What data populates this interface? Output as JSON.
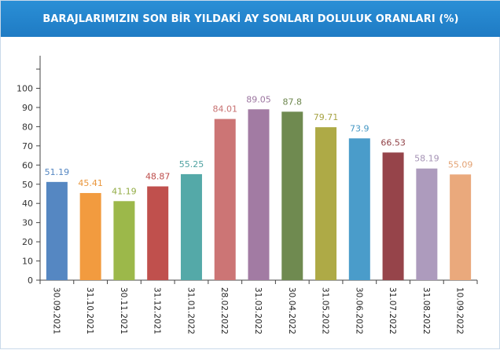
{
  "header": {
    "title": "BARAJLARIMIZIN SON BİR YILDAKİ AY SONLARI DOLULUK ORANLARI (%)"
  },
  "chart_data": {
    "type": "bar",
    "title": "BARAJLARIMIZIN SON BİR YILDAKİ AY SONLARI DOLULUK ORANLARI (%)",
    "xlabel": "",
    "ylabel": "",
    "ylim": [
      0,
      110
    ],
    "yticks": [
      0,
      10,
      20,
      30,
      40,
      50,
      60,
      70,
      80,
      90,
      100
    ],
    "grid": false,
    "legend": "none",
    "categories": [
      "30.09.2021",
      "31.10.2021",
      "30.11.2021",
      "31.12.2021",
      "31.01.2022",
      "28.02.2022",
      "31.03.2022",
      "30.04.2022",
      "31.05.2022",
      "30.06.2022",
      "31.07.2022",
      "31.08.2022",
      "10.09.2022"
    ],
    "values": [
      51.19,
      45.41,
      41.19,
      48.87,
      55.25,
      84.01,
      89.05,
      87.8,
      79.71,
      73.9,
      66.53,
      58.19,
      55.09
    ],
    "value_labels": [
      "51.19",
      "45.41",
      "41.19",
      "48.87",
      "55.25",
      "84.01",
      "89.05",
      "87.8",
      "79.71",
      "73.9",
      "66.53",
      "58.19",
      "55.09"
    ],
    "colors": [
      "#5587c2",
      "#f29b3f",
      "#9cb84a",
      "#c0504d",
      "#54a9a8",
      "#cc7575",
      "#a27ba3",
      "#6f8a50",
      "#aeaa46",
      "#4a9cca",
      "#96444a",
      "#ad9bbd",
      "#eaa97c"
    ],
    "label_colors": [
      "#5587c2",
      "#e9963c",
      "#93ac45",
      "#bd4c4a",
      "#4fa2a1",
      "#c77171",
      "#9c76a0",
      "#6c864d",
      "#a7a343",
      "#4597c4",
      "#914247",
      "#a593b5",
      "#e3a273"
    ]
  }
}
